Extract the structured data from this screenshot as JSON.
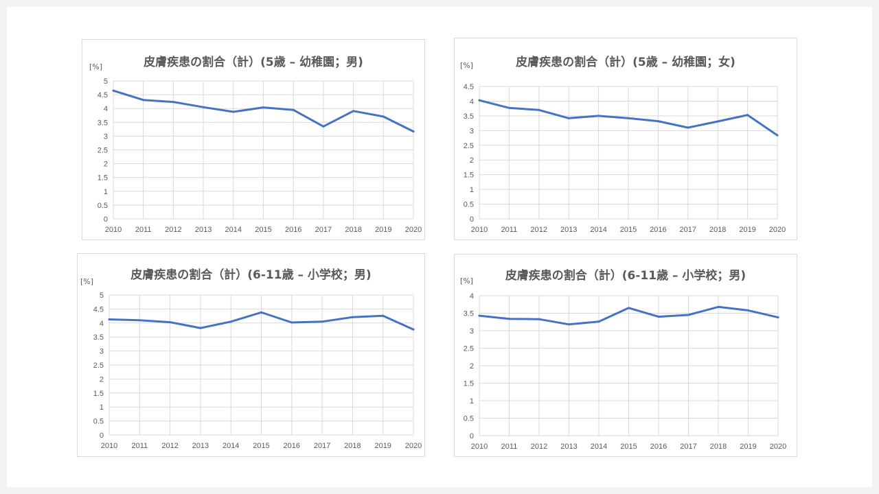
{
  "chart_data": [
    {
      "type": "line",
      "title": "皮膚疾患の割合（計）(5歳 – 幼稚園；男)",
      "ylabel": "[%]",
      "xlabel": "",
      "ylim": [
        0,
        5
      ],
      "yticks": [
        "0",
        "0.5",
        "1",
        "1.5",
        "2",
        "2.5",
        "3",
        "3.5",
        "4",
        "4.5",
        "5"
      ],
      "categories": [
        "2010",
        "2011",
        "2012",
        "2013",
        "2014",
        "2015",
        "2016",
        "2017",
        "2018",
        "2019",
        "2020"
      ],
      "series": [
        {
          "values": [
            4.65,
            4.31,
            4.24,
            4.05,
            3.88,
            4.04,
            3.95,
            3.35,
            3.91,
            3.71,
            3.17
          ]
        }
      ],
      "grid": true,
      "legend": "none",
      "color": "#4472c4"
    },
    {
      "type": "line",
      "title": "皮膚疾患の割合（計）(5歳 – 幼稚園；女)",
      "ylabel": "[%]",
      "xlabel": "",
      "ylim": [
        0,
        4.5
      ],
      "yticks": [
        "0",
        "0.5",
        "1",
        "1.5",
        "2",
        "2.5",
        "3",
        "3.5",
        "4",
        "4.5"
      ],
      "categories": [
        "2010",
        "2011",
        "2012",
        "2013",
        "2014",
        "2015",
        "2016",
        "2017",
        "2018",
        "2019",
        "2020"
      ],
      "series": [
        {
          "values": [
            4.03,
            3.77,
            3.7,
            3.42,
            3.5,
            3.42,
            3.32,
            3.1,
            3.31,
            3.53,
            2.84
          ]
        }
      ],
      "grid": true,
      "legend": "none",
      "color": "#4472c4"
    },
    {
      "type": "line",
      "title": "皮膚疾患の割合（計）(6-11歳 – 小学校；男)",
      "ylabel": "[%]",
      "xlabel": "",
      "ylim": [
        0,
        5
      ],
      "yticks": [
        "0",
        "0.5",
        "1",
        "1.5",
        "2",
        "2.5",
        "3",
        "3.5",
        "4",
        "4.5",
        "5"
      ],
      "categories": [
        "2010",
        "2011",
        "2012",
        "2013",
        "2014",
        "2015",
        "2016",
        "2017",
        "2018",
        "2019",
        "2020"
      ],
      "series": [
        {
          "values": [
            4.13,
            4.1,
            4.03,
            3.82,
            4.05,
            4.38,
            4.02,
            4.05,
            4.21,
            4.26,
            3.77
          ]
        }
      ],
      "grid": true,
      "legend": "none",
      "color": "#4472c4"
    },
    {
      "type": "line",
      "title": "皮膚疾患の割合（計）(6-11歳 – 小学校；男)",
      "ylabel": "[%]",
      "xlabel": "",
      "ylim": [
        0,
        4
      ],
      "yticks": [
        "0",
        "0.5",
        "1",
        "1.5",
        "2",
        "2.5",
        "3",
        "3.5",
        "4"
      ],
      "categories": [
        "2010",
        "2011",
        "2012",
        "2013",
        "2014",
        "2015",
        "2016",
        "2017",
        "2018",
        "2019",
        "2020"
      ],
      "series": [
        {
          "values": [
            3.43,
            3.34,
            3.33,
            3.18,
            3.26,
            3.65,
            3.4,
            3.45,
            3.68,
            3.58,
            3.38
          ]
        }
      ],
      "grid": true,
      "legend": "none",
      "color": "#4472c4"
    }
  ]
}
